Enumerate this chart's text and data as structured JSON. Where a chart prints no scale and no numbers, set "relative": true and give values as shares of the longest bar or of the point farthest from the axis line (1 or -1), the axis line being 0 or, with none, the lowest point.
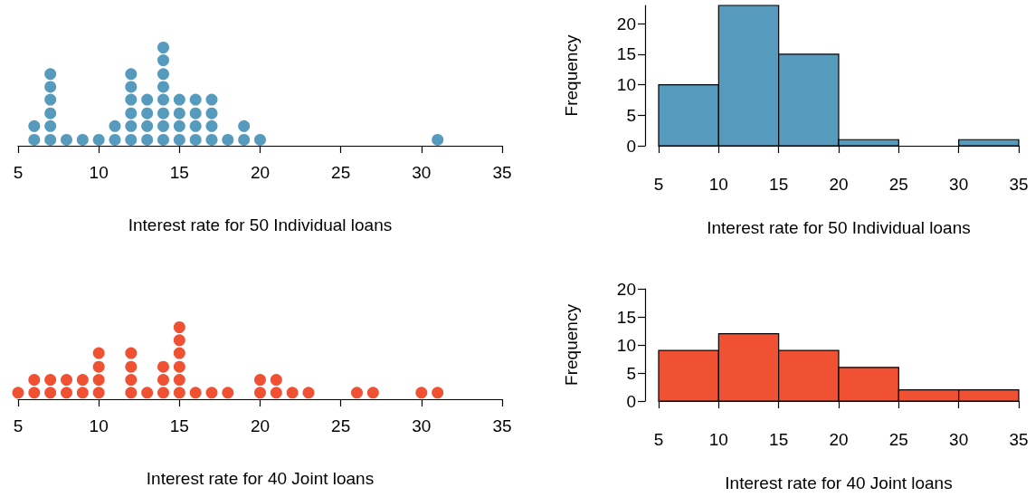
{
  "chart_data": [
    {
      "type": "scatter",
      "relative": true,
      "color": "#569bbd",
      "marker": "circle",
      "tick_labels": "x",
      "xlabel": "Interest rate for 50 Individual loans",
      "xlim": [
        5,
        35
      ],
      "xticks": [
        5,
        10,
        15,
        20,
        25,
        30,
        35
      ],
      "x": [
        6,
        6,
        7,
        7,
        7,
        7,
        7,
        7,
        8,
        9,
        10,
        11,
        11,
        12,
        12,
        12,
        12,
        12,
        12,
        13,
        13,
        13,
        13,
        14,
        14,
        14,
        14,
        14,
        14,
        14,
        14,
        15,
        15,
        15,
        15,
        16,
        16,
        16,
        16,
        17,
        17,
        17,
        17,
        18,
        19,
        19,
        20,
        31
      ],
      "values": [
        0.06,
        0.2,
        0.06,
        0.2,
        0.33,
        0.47,
        0.6,
        0.73,
        0.06,
        0.06,
        0.06,
        0.06,
        0.2,
        0.06,
        0.2,
        0.33,
        0.47,
        0.6,
        0.73,
        0.06,
        0.2,
        0.33,
        0.47,
        0.06,
        0.2,
        0.33,
        0.47,
        0.6,
        0.73,
        0.87,
        1,
        0.06,
        0.2,
        0.33,
        0.47,
        0.06,
        0.2,
        0.33,
        0.47,
        0.06,
        0.2,
        0.33,
        0.47,
        0.06,
        0.06,
        0.2,
        0.06,
        0.06
      ]
    },
    {
      "type": "histogram",
      "color": "#569bbd",
      "xlabel": "Interest rate for 50 Individual loans",
      "ylabel": "Frequency",
      "bins": [
        5,
        10,
        15,
        20,
        25,
        30,
        35
      ],
      "values": [
        10,
        23,
        15,
        1,
        0,
        1
      ],
      "xlim": [
        5,
        35
      ],
      "xticks": [
        5,
        10,
        15,
        20,
        25,
        30,
        35
      ],
      "ylim": [
        0,
        23
      ],
      "yticks": [
        0,
        5,
        10,
        15,
        20
      ]
    },
    {
      "type": "scatter",
      "relative": true,
      "color": "#f05133",
      "marker": "circle",
      "tick_labels": "x",
      "xlabel": "Interest rate for 40 Joint loans",
      "xlim": [
        5,
        35
      ],
      "xticks": [
        5,
        10,
        15,
        20,
        25,
        30,
        35
      ],
      "x": [
        5,
        6,
        6,
        7,
        7,
        8,
        8,
        9,
        9,
        10,
        10,
        10,
        10,
        12,
        12,
        12,
        12,
        13,
        14,
        14,
        14,
        15,
        15,
        15,
        15,
        15,
        15,
        16,
        17,
        18,
        20,
        20,
        21,
        21,
        22,
        23,
        26,
        27,
        30,
        31
      ],
      "values": [
        0.09,
        0.09,
        0.27,
        0.09,
        0.27,
        0.09,
        0.27,
        0.09,
        0.27,
        0.09,
        0.27,
        0.45,
        0.64,
        0.09,
        0.27,
        0.45,
        0.64,
        0.09,
        0.09,
        0.27,
        0.45,
        0.09,
        0.27,
        0.45,
        0.64,
        0.82,
        1,
        0.09,
        0.09,
        0.09,
        0.09,
        0.27,
        0.09,
        0.27,
        0.09,
        0.09,
        0.09,
        0.09,
        0.09,
        0.09
      ]
    },
    {
      "type": "histogram",
      "color": "#f05133",
      "xlabel": "Interest rate for 40 Joint loans",
      "ylabel": "Frequency",
      "bins": [
        5,
        10,
        15,
        20,
        25,
        30,
        35
      ],
      "values": [
        9,
        12,
        9,
        6,
        2,
        2
      ],
      "xlim": [
        5,
        35
      ],
      "xticks": [
        5,
        10,
        15,
        20,
        25,
        30,
        35
      ],
      "ylim": [
        0,
        20
      ],
      "yticks": [
        0,
        5,
        10,
        15,
        20
      ]
    }
  ]
}
